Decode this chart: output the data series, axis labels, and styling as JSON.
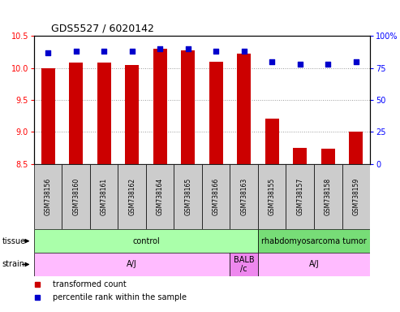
{
  "title": "GDS5527 / 6020142",
  "samples": [
    "GSM738156",
    "GSM738160",
    "GSM738161",
    "GSM738162",
    "GSM738164",
    "GSM738165",
    "GSM738166",
    "GSM738163",
    "GSM738155",
    "GSM738157",
    "GSM738158",
    "GSM738159"
  ],
  "transformed_count": [
    10.0,
    10.08,
    10.08,
    10.05,
    10.3,
    10.27,
    10.1,
    10.22,
    9.2,
    8.75,
    8.73,
    9.0
  ],
  "percentile_rank": [
    87,
    88,
    88,
    88,
    90,
    90,
    88,
    88,
    80,
    78,
    78,
    80
  ],
  "y_min": 8.5,
  "y_max": 10.5,
  "y_ticks": [
    8.5,
    9.0,
    9.5,
    10.0,
    10.5
  ],
  "y2_ticks": [
    0,
    25,
    50,
    75,
    100
  ],
  "bar_color": "#cc0000",
  "dot_color": "#0000cc",
  "tissue_labels": [
    {
      "text": "control",
      "start": 0,
      "end": 8,
      "color": "#aaffaa"
    },
    {
      "text": "rhabdomyosarcoma tumor",
      "start": 8,
      "end": 12,
      "color": "#77dd77"
    }
  ],
  "strain_labels": [
    {
      "text": "A/J",
      "start": 0,
      "end": 7,
      "color": "#ffbbff"
    },
    {
      "text": "BALB\n/c",
      "start": 7,
      "end": 8,
      "color": "#ee88ee"
    },
    {
      "text": "A/J",
      "start": 8,
      "end": 12,
      "color": "#ffbbff"
    }
  ],
  "legend_items": [
    {
      "color": "#cc0000",
      "label": "transformed count"
    },
    {
      "color": "#0000cc",
      "label": "percentile rank within the sample"
    }
  ],
  "sample_box_color": "#cccccc",
  "grid_color": "#999999"
}
